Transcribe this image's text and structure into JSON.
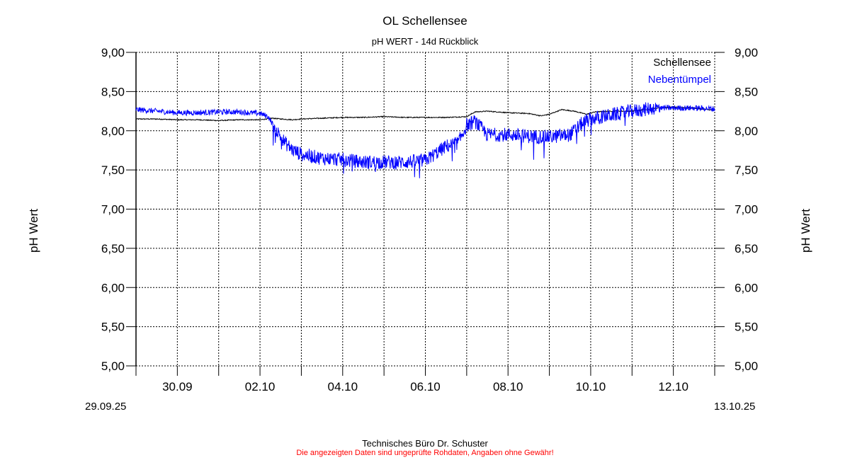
{
  "chart_data": {
    "type": "line",
    "title": "OL Schellensee",
    "subtitle": "pH WERT - 14d Rückblick",
    "ylabel_left": "pH Wert",
    "ylabel_right": "pH Wert",
    "ylim": [
      5.0,
      9.0
    ],
    "y_ticks": [
      "5,00",
      "5,50",
      "6,00",
      "6,50",
      "7,00",
      "7,50",
      "8,00",
      "8,50",
      "9,00"
    ],
    "x_range_days": [
      0,
      14
    ],
    "x_tick_labels": [
      "30.09",
      "02.10",
      "04.10",
      "06.10",
      "08.10",
      "10.10",
      "12.10"
    ],
    "x_start_label": "29.09.25",
    "x_end_label": "13.10.25",
    "grid": true,
    "legend_position": "top-right",
    "series": [
      {
        "name": "Schellensee",
        "color": "#000000",
        "points": [
          [
            0,
            8.15
          ],
          [
            0.5,
            8.15
          ],
          [
            1,
            8.14
          ],
          [
            1.5,
            8.14
          ],
          [
            2,
            8.13
          ],
          [
            2.5,
            8.14
          ],
          [
            3,
            8.14
          ],
          [
            3.3,
            8.16
          ],
          [
            3.5,
            8.15
          ],
          [
            3.8,
            8.14
          ],
          [
            4,
            8.15
          ],
          [
            4.5,
            8.16
          ],
          [
            5,
            8.17
          ],
          [
            5.5,
            8.17
          ],
          [
            6,
            8.18
          ],
          [
            6.5,
            8.17
          ],
          [
            7,
            8.17
          ],
          [
            7.5,
            8.17
          ],
          [
            8,
            8.18
          ],
          [
            8.2,
            8.24
          ],
          [
            8.5,
            8.25
          ],
          [
            9,
            8.23
          ],
          [
            9.5,
            8.22
          ],
          [
            9.8,
            8.19
          ],
          [
            10,
            8.21
          ],
          [
            10.3,
            8.27
          ],
          [
            10.6,
            8.25
          ],
          [
            10.9,
            8.21
          ],
          [
            11.1,
            8.24
          ],
          [
            11.5,
            8.25
          ],
          [
            12,
            8.25
          ],
          [
            12.3,
            8.27
          ],
          [
            12.6,
            8.29
          ],
          [
            13,
            8.3
          ],
          [
            13.5,
            8.29
          ],
          [
            14,
            8.26
          ]
        ]
      },
      {
        "name": "Nebentümpel",
        "color": "#0000ff",
        "points": [
          [
            0,
            8.27
          ],
          [
            0.5,
            8.25
          ],
          [
            1,
            8.23
          ],
          [
            1.5,
            8.23
          ],
          [
            2,
            8.24
          ],
          [
            2.5,
            8.24
          ],
          [
            3,
            8.22
          ],
          [
            3.2,
            8.18
          ],
          [
            3.4,
            8.0
          ],
          [
            3.6,
            7.85
          ],
          [
            3.8,
            7.75
          ],
          [
            4,
            7.7
          ],
          [
            4.5,
            7.65
          ],
          [
            5,
            7.63
          ],
          [
            5.5,
            7.6
          ],
          [
            6,
            7.6
          ],
          [
            6.5,
            7.6
          ],
          [
            7,
            7.62
          ],
          [
            7.5,
            7.8
          ],
          [
            7.8,
            7.85
          ],
          [
            8,
            8.07
          ],
          [
            8.2,
            8.12
          ],
          [
            8.5,
            7.95
          ],
          [
            9,
            7.95
          ],
          [
            9.5,
            7.93
          ],
          [
            10,
            7.92
          ],
          [
            10.5,
            7.95
          ],
          [
            10.8,
            8.1
          ],
          [
            11,
            8.15
          ],
          [
            11.5,
            8.2
          ],
          [
            12,
            8.25
          ],
          [
            12.3,
            8.27
          ],
          [
            12.5,
            8.29
          ],
          [
            13,
            8.29
          ],
          [
            13.5,
            8.29
          ],
          [
            14,
            8.28
          ]
        ]
      }
    ]
  }
}
